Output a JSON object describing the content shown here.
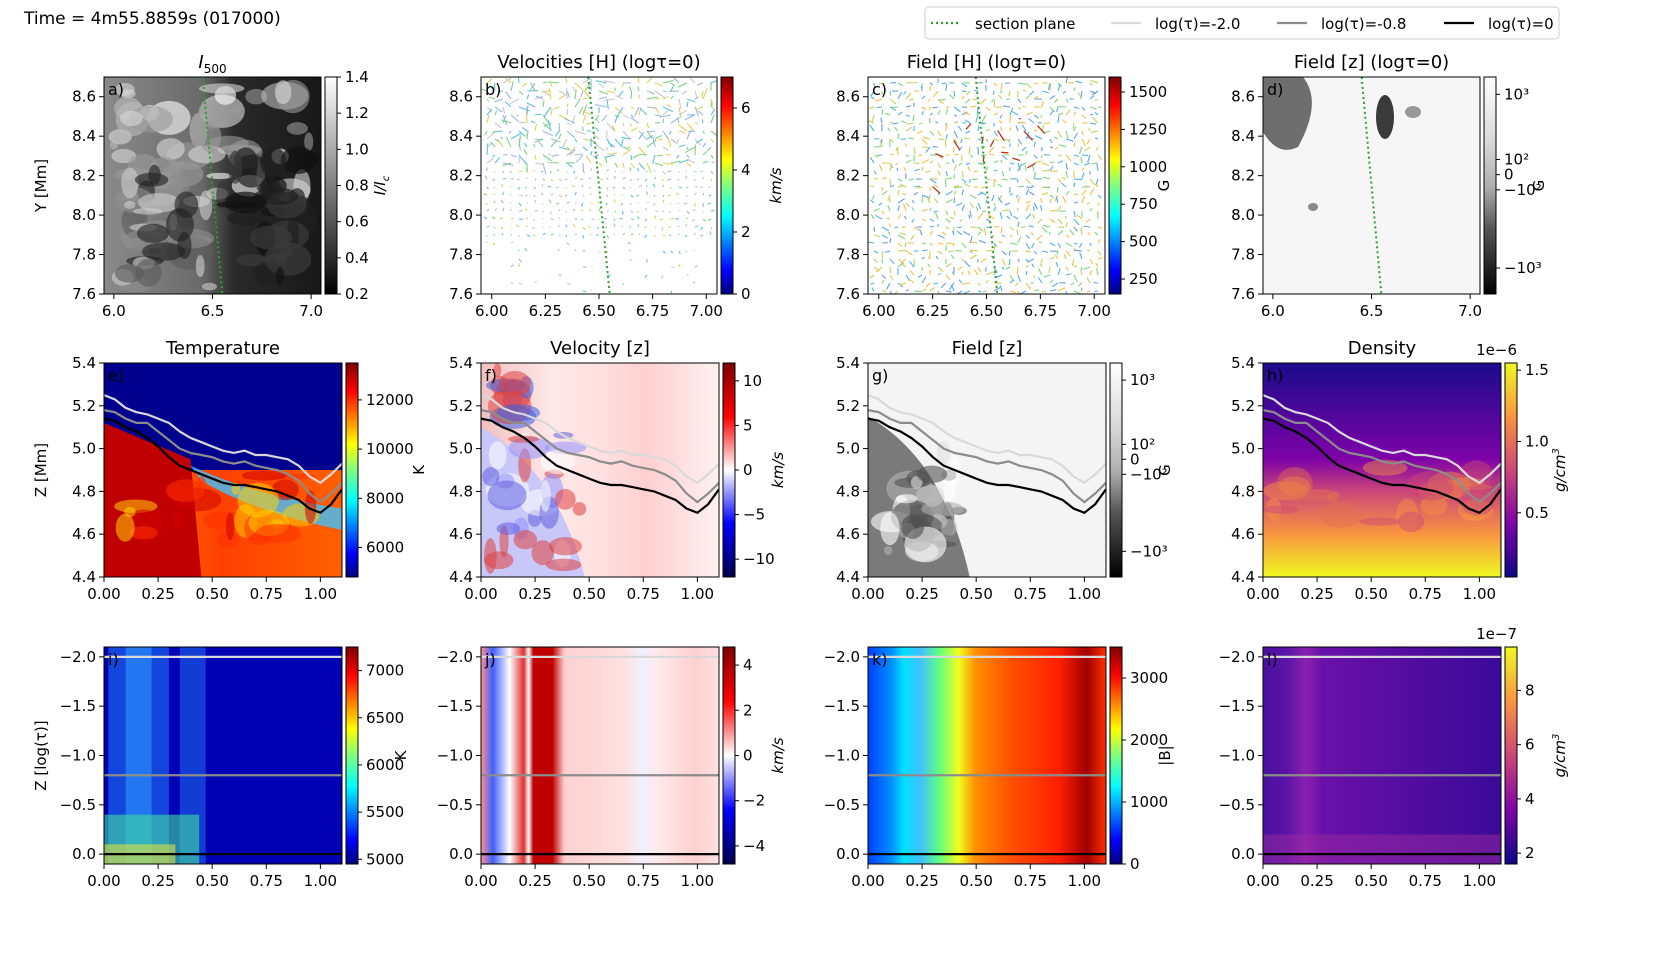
{
  "header": {
    "time_label": "Time = 4m55.8859s (017000)"
  },
  "legend": [
    {
      "label": "section plane",
      "style": "dotted",
      "color": "#2ca02c"
    },
    {
      "label": "log(τ)=-2.0",
      "style": "solid",
      "color": "#d9d9d9"
    },
    {
      "label": "log(τ)=-0.8",
      "style": "solid",
      "color": "#8c8c8c"
    },
    {
      "label": "log(τ)=0",
      "style": "solid",
      "color": "#000000"
    }
  ],
  "chart_data": [
    {
      "id": "a",
      "panel_label": "a)",
      "title": "I500",
      "title_main": "I",
      "title_sub": "500",
      "type": "heatmap",
      "cmap": "gray",
      "xlim": [
        5.95,
        7.05
      ],
      "ylim": [
        7.6,
        8.7
      ],
      "ylabel": "Y [Mm]",
      "xticks": [
        "6.0",
        "6.5",
        "7.0"
      ],
      "yticks": [
        "7.6",
        "7.8",
        "8.0",
        "8.2",
        "8.4",
        "8.6"
      ],
      "colorbar": {
        "ticks": [
          "0.2",
          "0.4",
          "0.6",
          "0.8",
          "1.0",
          "1.2",
          "1.4"
        ],
        "label": "I/I_c",
        "label_main": "I/I",
        "label_sub": "c",
        "range": [
          0.2,
          1.4
        ]
      },
      "section_plane": [
        [
          6.45,
          8.7
        ],
        [
          6.55,
          7.6
        ]
      ]
    },
    {
      "id": "b",
      "panel_label": "b)",
      "title": "Velocities [H] (logτ=0)",
      "type": "quiver",
      "cmap": "jet",
      "xlim": [
        5.95,
        7.05
      ],
      "ylim": [
        7.6,
        8.7
      ],
      "xticks": [
        "6.00",
        "6.25",
        "6.50",
        "6.75",
        "7.00"
      ],
      "yticks": [
        "7.6",
        "7.8",
        "8.0",
        "8.2",
        "8.4",
        "8.6"
      ],
      "colorbar": {
        "ticks": [
          "0",
          "2",
          "4",
          "6"
        ],
        "label": "km/s",
        "range": [
          0,
          7
        ]
      },
      "section_plane": [
        [
          6.45,
          8.7
        ],
        [
          6.55,
          7.6
        ]
      ]
    },
    {
      "id": "c",
      "panel_label": "c)",
      "title": "Field [H] (logτ=0)",
      "type": "quiver",
      "cmap": "jet",
      "xlim": [
        5.95,
        7.05
      ],
      "ylim": [
        7.6,
        8.7
      ],
      "xticks": [
        "6.00",
        "6.25",
        "6.50",
        "6.75",
        "7.00"
      ],
      "yticks": [
        "7.6",
        "7.8",
        "8.0",
        "8.2",
        "8.4",
        "8.6"
      ],
      "colorbar": {
        "ticks": [
          "250",
          "500",
          "750",
          "1000",
          "1250",
          "1500"
        ],
        "label": "G",
        "range": [
          150,
          1600
        ]
      },
      "section_plane": [
        [
          6.45,
          8.7
        ],
        [
          6.55,
          7.6
        ]
      ]
    },
    {
      "id": "d",
      "panel_label": "d)",
      "title": "Field [z] (logτ=0)",
      "type": "heatmap",
      "cmap": "gray-symlog",
      "xlim": [
        5.95,
        7.05
      ],
      "ylim": [
        7.6,
        8.7
      ],
      "xticks": [
        "6.0",
        "6.5",
        "7.0"
      ],
      "yticks": [
        "7.6",
        "7.8",
        "8.0",
        "8.2",
        "8.4",
        "8.6"
      ],
      "colorbar": {
        "ticks": [
          "10³",
          "10²",
          "0",
          "−10²",
          "−10³"
        ],
        "label": "G"
      },
      "section_plane": [
        [
          6.45,
          8.7
        ],
        [
          6.55,
          7.6
        ]
      ]
    },
    {
      "id": "e",
      "panel_label": "e)",
      "title": "Temperature",
      "type": "heatmap",
      "cmap": "jet",
      "xlim": [
        0.0,
        1.1
      ],
      "ylim": [
        4.4,
        5.4
      ],
      "ylabel": "Z [Mm]",
      "xticks": [
        "0.00",
        "0.25",
        "0.50",
        "0.75",
        "1.00"
      ],
      "yticks": [
        "4.4",
        "4.6",
        "4.8",
        "5.0",
        "5.2",
        "5.4"
      ],
      "colorbar": {
        "ticks": [
          "6000",
          "8000",
          "10000",
          "12000"
        ],
        "label": "K",
        "range": [
          4800,
          13500
        ]
      },
      "tau_curves": {
        "x": [
          0,
          0.05,
          0.1,
          0.15,
          0.2,
          0.25,
          0.3,
          0.35,
          0.4,
          0.45,
          0.5,
          0.55,
          0.6,
          0.65,
          0.7,
          0.75,
          0.8,
          0.85,
          0.9,
          0.95,
          1.0,
          1.05,
          1.1
        ],
        "tau_m2": [
          5.25,
          5.23,
          5.19,
          5.17,
          5.16,
          5.14,
          5.12,
          5.08,
          5.05,
          5.03,
          5.01,
          4.99,
          4.98,
          4.99,
          4.97,
          4.97,
          4.96,
          4.95,
          4.92,
          4.87,
          4.84,
          4.88,
          4.93
        ],
        "tau_m08": [
          5.18,
          5.17,
          5.14,
          5.12,
          5.12,
          5.08,
          5.04,
          5.0,
          4.98,
          4.97,
          4.96,
          4.94,
          4.93,
          4.94,
          4.92,
          4.91,
          4.9,
          4.88,
          4.85,
          4.79,
          4.75,
          4.79,
          4.84
        ],
        "tau_0": [
          5.14,
          5.13,
          5.1,
          5.08,
          5.05,
          5.01,
          4.96,
          4.92,
          4.9,
          4.88,
          4.86,
          4.84,
          4.83,
          4.83,
          4.82,
          4.81,
          4.8,
          4.78,
          4.76,
          4.72,
          4.7,
          4.74,
          4.81
        ]
      }
    },
    {
      "id": "f",
      "panel_label": "f)",
      "title": "Velocity [z]",
      "type": "heatmap",
      "cmap": "seismic",
      "xlim": [
        0.0,
        1.1
      ],
      "ylim": [
        4.4,
        5.4
      ],
      "xticks": [
        "0.00",
        "0.25",
        "0.50",
        "0.75",
        "1.00"
      ],
      "yticks": [
        "4.4",
        "4.6",
        "4.8",
        "5.0",
        "5.2",
        "5.4"
      ],
      "colorbar": {
        "ticks": [
          "−10",
          "−5",
          "0",
          "5",
          "10"
        ],
        "label": "km/s",
        "range": [
          -12,
          12
        ]
      }
    },
    {
      "id": "g",
      "panel_label": "g)",
      "title": "Field [z]",
      "type": "heatmap",
      "cmap": "gray-symlog",
      "xlim": [
        0.0,
        1.1
      ],
      "ylim": [
        4.4,
        5.4
      ],
      "xticks": [
        "0.00",
        "0.25",
        "0.50",
        "0.75",
        "1.00"
      ],
      "yticks": [
        "4.4",
        "4.6",
        "4.8",
        "5.0",
        "5.2",
        "5.4"
      ],
      "colorbar": {
        "ticks": [
          "10³",
          "10²",
          "0",
          "−10²",
          "−10³"
        ],
        "label": "G"
      }
    },
    {
      "id": "h",
      "panel_label": "h)",
      "title": "Density",
      "type": "heatmap",
      "cmap": "plasma",
      "xlim": [
        0.0,
        1.1
      ],
      "ylim": [
        4.4,
        5.4
      ],
      "xticks": [
        "0.00",
        "0.25",
        "0.50",
        "0.75",
        "1.00"
      ],
      "yticks": [
        "4.4",
        "4.6",
        "4.8",
        "5.0",
        "5.2",
        "5.4"
      ],
      "colorbar": {
        "ticks": [
          "0.5",
          "1.0",
          "1.5"
        ],
        "label": "g/cm³",
        "label_main": "g/cm",
        "label_sup": "3",
        "offset": "1e−6",
        "range": [
          0.05,
          1.55
        ]
      }
    },
    {
      "id": "i",
      "panel_label": "i)",
      "title": "",
      "type": "heatmap",
      "cmap": "jet",
      "xlim": [
        0.0,
        1.1
      ],
      "ylim": [
        0.1,
        -2.1
      ],
      "ylabel": "Z [log(τ)]",
      "xticks": [
        "0.00",
        "0.25",
        "0.50",
        "0.75",
        "1.00"
      ],
      "yticks": [
        "−2.0",
        "−1.5",
        "−1.0",
        "−0.5",
        "0.0"
      ],
      "colorbar": {
        "ticks": [
          "5000",
          "5500",
          "6000",
          "6500",
          "7000"
        ],
        "label": "K",
        "range": [
          4950,
          7250
        ]
      },
      "tau_lines": [
        -2.0,
        -0.8,
        0.0
      ]
    },
    {
      "id": "j",
      "panel_label": "j)",
      "title": "",
      "type": "heatmap",
      "cmap": "seismic",
      "xlim": [
        0.0,
        1.1
      ],
      "ylim": [
        0.1,
        -2.1
      ],
      "xticks": [
        "0.00",
        "0.25",
        "0.50",
        "0.75",
        "1.00"
      ],
      "yticks": [
        "−2.0",
        "−1.5",
        "−1.0",
        "−0.5",
        "0.0"
      ],
      "colorbar": {
        "ticks": [
          "−4",
          "−2",
          "0",
          "2",
          "4"
        ],
        "label": "km/s",
        "range": [
          -4.8,
          4.8
        ]
      },
      "tau_lines": [
        -2.0,
        -0.8,
        0.0
      ]
    },
    {
      "id": "k",
      "panel_label": "k)",
      "title": "",
      "type": "heatmap",
      "cmap": "jet",
      "xlim": [
        0.0,
        1.1
      ],
      "ylim": [
        0.1,
        -2.1
      ],
      "xticks": [
        "0.00",
        "0.25",
        "0.50",
        "0.75",
        "1.00"
      ],
      "yticks": [
        "−2.0",
        "−1.5",
        "−1.0",
        "−0.5",
        "0.0"
      ],
      "colorbar": {
        "ticks": [
          "0",
          "1000",
          "2000",
          "3000"
        ],
        "label": "|B|",
        "range": [
          0,
          3500
        ]
      },
      "tau_lines": [
        -2.0,
        -0.8,
        0.0
      ]
    },
    {
      "id": "l",
      "panel_label": "l)",
      "title": "",
      "type": "heatmap",
      "cmap": "plasma",
      "xlim": [
        0.0,
        1.1
      ],
      "ylim": [
        0.1,
        -2.1
      ],
      "xticks": [
        "0.00",
        "0.25",
        "0.50",
        "0.75",
        "1.00"
      ],
      "yticks": [
        "−2.0",
        "−1.5",
        "−1.0",
        "−0.5",
        "0.0"
      ],
      "colorbar": {
        "ticks": [
          "2",
          "4",
          "6",
          "8"
        ],
        "label": "g/cm³",
        "label_main": "g/cm",
        "label_sup": "3",
        "offset": "1e−7",
        "range": [
          1.6,
          9.6
        ]
      },
      "tau_lines": [
        -2.0,
        -0.8,
        0.0
      ]
    }
  ]
}
